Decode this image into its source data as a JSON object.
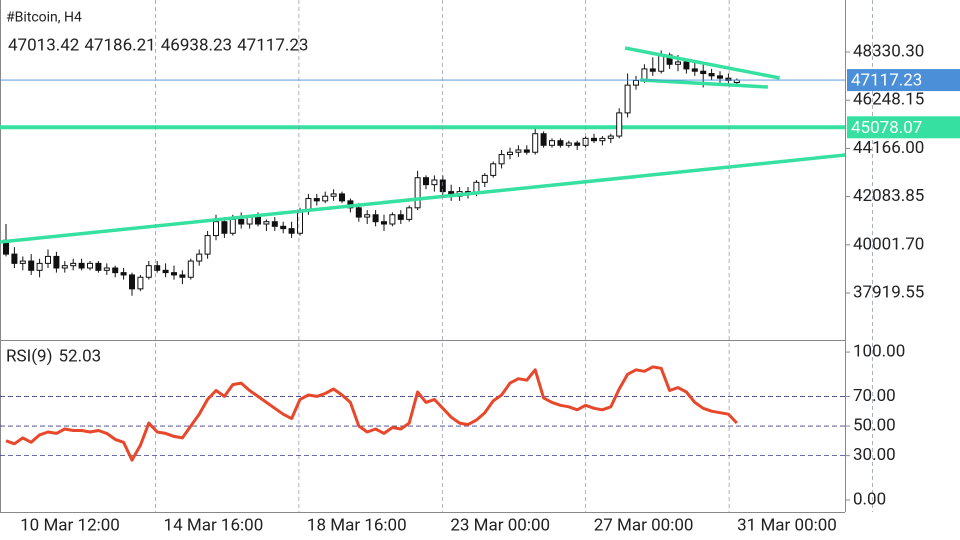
{
  "chart_data": {
    "type": "candlestick",
    "title": "#Bitcoin, H4",
    "candles": [
      [
        40200,
        40900,
        39500,
        39600
      ],
      [
        39600,
        39900,
        39000,
        39200
      ],
      [
        39200,
        39500,
        38900,
        39300
      ],
      [
        39300,
        39600,
        38700,
        38900
      ],
      [
        38900,
        39400,
        38600,
        39200
      ],
      [
        39200,
        39800,
        39000,
        39500
      ],
      [
        39500,
        39700,
        38800,
        39000
      ],
      [
        39000,
        39300,
        38800,
        39100
      ],
      [
        39100,
        39400,
        38900,
        39200
      ],
      [
        39200,
        39400,
        38900,
        39000
      ],
      [
        39000,
        39300,
        38900,
        39200
      ],
      [
        39200,
        39300,
        38800,
        38900
      ],
      [
        38900,
        39200,
        38700,
        39000
      ],
      [
        39000,
        39100,
        38600,
        38800
      ],
      [
        38800,
        39000,
        38500,
        38700
      ],
      [
        38700,
        38800,
        37800,
        38100
      ],
      [
        38100,
        38700,
        38000,
        38600
      ],
      [
        38600,
        39300,
        38500,
        39100
      ],
      [
        39100,
        39300,
        38800,
        38900
      ],
      [
        38900,
        39200,
        38600,
        38800
      ],
      [
        38800,
        39100,
        38500,
        38700
      ],
      [
        38700,
        38900,
        38300,
        38600
      ],
      [
        38600,
        39400,
        38500,
        39300
      ],
      [
        39300,
        39800,
        39100,
        39600
      ],
      [
        39600,
        40600,
        39400,
        40400
      ],
      [
        40400,
        41300,
        40200,
        41000
      ],
      [
        41000,
        41200,
        40300,
        40500
      ],
      [
        40500,
        41300,
        40400,
        41100
      ],
      [
        41100,
        41400,
        40700,
        40900
      ],
      [
        40900,
        41300,
        40700,
        41200
      ],
      [
        41200,
        41400,
        40800,
        40900
      ],
      [
        40900,
        41100,
        40600,
        41000
      ],
      [
        41000,
        41200,
        40600,
        40800
      ],
      [
        40800,
        41000,
        40500,
        40700
      ],
      [
        40700,
        41000,
        40300,
        40500
      ],
      [
        40500,
        41600,
        40400,
        41500
      ],
      [
        41500,
        42200,
        41300,
        42000
      ],
      [
        42000,
        42200,
        41700,
        41900
      ],
      [
        41900,
        42300,
        41800,
        42100
      ],
      [
        42100,
        42400,
        41900,
        42200
      ],
      [
        42200,
        42300,
        41800,
        41900
      ],
      [
        41900,
        42000,
        41400,
        41600
      ],
      [
        41600,
        41800,
        41000,
        41200
      ],
      [
        41200,
        41500,
        40900,
        41300
      ],
      [
        41300,
        41500,
        40800,
        41000
      ],
      [
        41000,
        41300,
        40600,
        40900
      ],
      [
        40900,
        41400,
        40800,
        41300
      ],
      [
        41300,
        41500,
        40900,
        41100
      ],
      [
        41100,
        41700,
        41000,
        41600
      ],
      [
        41600,
        43200,
        41500,
        42900
      ],
      [
        42900,
        43000,
        42400,
        42600
      ],
      [
        42600,
        43000,
        42300,
        42800
      ],
      [
        42800,
        43000,
        42100,
        42300
      ],
      [
        42300,
        42600,
        41900,
        42100
      ],
      [
        42100,
        42500,
        41900,
        42300
      ],
      [
        42300,
        42500,
        42000,
        42200
      ],
      [
        42200,
        42800,
        42100,
        42700
      ],
      [
        42700,
        43100,
        42500,
        43000
      ],
      [
        43000,
        43600,
        42900,
        43500
      ],
      [
        43500,
        44100,
        43300,
        43900
      ],
      [
        43900,
        44200,
        43700,
        44000
      ],
      [
        44000,
        44300,
        43800,
        44100
      ],
      [
        44100,
        44300,
        43900,
        44000
      ],
      [
        44000,
        45000,
        43900,
        44800
      ],
      [
        44800,
        44900,
        44200,
        44300
      ],
      [
        44300,
        44600,
        44200,
        44500
      ],
      [
        44500,
        44600,
        44200,
        44300
      ],
      [
        44300,
        44500,
        44200,
        44400
      ],
      [
        44400,
        44500,
        44100,
        44300
      ],
      [
        44300,
        44700,
        44200,
        44600
      ],
      [
        44600,
        44800,
        44400,
        44500
      ],
      [
        44500,
        44700,
        44300,
        44600
      ],
      [
        44600,
        44800,
        44400,
        44700
      ],
      [
        44700,
        45900,
        44600,
        45700
      ],
      [
        45700,
        47400,
        45500,
        46900
      ],
      [
        46900,
        47300,
        46700,
        47100
      ],
      [
        47100,
        47800,
        47000,
        47600
      ],
      [
        47600,
        48100,
        47300,
        47500
      ],
      [
        47500,
        48400,
        47400,
        48200
      ],
      [
        48200,
        48300,
        47600,
        47800
      ],
      [
        47800,
        48200,
        47500,
        47900
      ],
      [
        47900,
        48000,
        47400,
        47600
      ],
      [
        47600,
        47900,
        47300,
        47500
      ],
      [
        47500,
        47800,
        46800,
        47400
      ],
      [
        47400,
        47600,
        47100,
        47300
      ],
      [
        47300,
        47500,
        47000,
        47200
      ],
      [
        47200,
        47400,
        46900,
        47100
      ],
      [
        47013.42,
        47186.21,
        46938.23,
        47117.23
      ]
    ],
    "ylim": [
      35976,
      50404
    ],
    "yticks": [
      37919.55,
      {
        "value": 40001.7,
        "label": "40001.70"
      },
      42083.85,
      {
        "value": 44166,
        "label": "44166.00"
      },
      46248.15,
      {
        "value": 48330.3,
        "label": "48330.30"
      }
    ],
    "level": 45078.07,
    "level_color": "#36e0a0",
    "price_line_color": "#4a8fd8",
    "trendlines": [
      {
        "x": [
          -0.7,
          99.9
        ],
        "y": [
          40122,
          43880
        ]
      },
      {
        "x": [
          73.7,
          92.1
        ],
        "y": [
          48503,
          47207
        ]
      },
      {
        "x": [
          75.5,
          90.7
        ],
        "y": [
          47120,
          46818
        ]
      }
    ],
    "x_labels": [
      "10 Mar 12:00",
      "14 Mar 16:00",
      "18 Mar 16:00",
      "23 Mar 00:00",
      "27 Mar 00:00",
      "31 Mar 00:00"
    ],
    "indicator": {
      "name": "RSI(9)",
      "color": "#e8472a",
      "values": [
        40,
        38,
        42,
        39,
        44,
        46,
        45,
        48,
        47,
        47,
        46,
        47,
        45,
        41,
        39,
        27,
        37,
        52,
        46,
        45,
        43,
        42,
        50,
        58,
        68,
        74,
        70,
        78,
        79,
        74,
        70,
        66,
        62,
        58,
        55,
        68,
        71,
        70,
        72,
        75,
        71,
        66,
        50,
        46,
        48,
        45,
        49,
        48,
        52,
        73,
        66,
        68,
        62,
        56,
        52,
        51,
        54,
        59,
        67,
        71,
        79,
        82,
        81,
        88,
        69,
        66,
        64,
        63,
        61,
        64,
        62,
        61,
        63,
        75,
        85,
        88,
        87,
        90,
        89,
        74,
        76,
        73,
        66,
        62,
        60,
        59,
        58,
        52.03
      ],
      "ylim": [
        -8.1,
        106.8
      ],
      "yticks": [
        {
          "value": 0,
          "label": "0.00"
        },
        {
          "value": 30,
          "label": "30.00"
        },
        {
          "value": 50,
          "label": "50.00"
        },
        {
          "value": 70,
          "label": "70.00"
        },
        {
          "value": 100,
          "label": "100.00"
        }
      ]
    }
  }
}
